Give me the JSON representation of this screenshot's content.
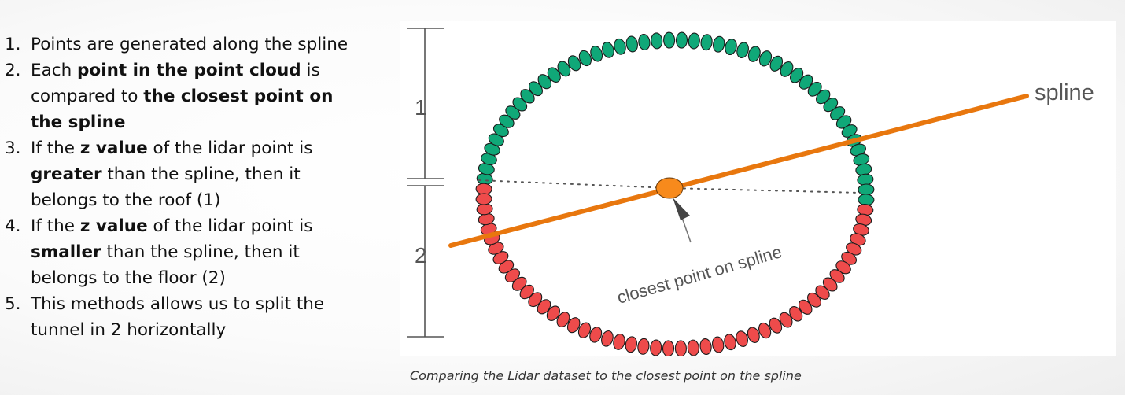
{
  "steps": [
    {
      "num": "1.",
      "parts": [
        {
          "t": "Points are generated along the spline"
        }
      ]
    },
    {
      "num": "2.",
      "parts": [
        {
          "t": "Each "
        },
        {
          "t": "point in the point cloud",
          "b": true
        },
        {
          "t": " is compared to "
        },
        {
          "t": "the closest point on the spline",
          "b": true
        }
      ]
    },
    {
      "num": "3.",
      "parts": [
        {
          "t": "If the "
        },
        {
          "t": "z value",
          "b": true
        },
        {
          "t": " of the lidar point is "
        },
        {
          "t": "greater",
          "b": true
        },
        {
          "t": " than the spline, then it belongs to the roof (1)"
        }
      ]
    },
    {
      "num": "4.",
      "parts": [
        {
          "t": "If the "
        },
        {
          "t": "z value",
          "b": true
        },
        {
          "t": " of the lidar point is "
        },
        {
          "t": "smaller",
          "b": true
        },
        {
          "t": " than the spline, then it belongs to the floor (2)"
        }
      ]
    },
    {
      "num": "5.",
      "parts": [
        {
          "t": "This methods allows us to split the tunnel in 2 horizontally"
        }
      ]
    }
  ],
  "diagram": {
    "label_1": "1",
    "label_2": "2",
    "spline_label": "spline",
    "closest_point_label": "closest point on spline",
    "colors": {
      "roof_points": "#10a878",
      "floor_points": "#ee4b4b",
      "spline": "#e8770e",
      "closest_point": "#f78a1c",
      "dimension_lines": "#555555",
      "dotted_lines": "#555555",
      "arrow": "#444444"
    }
  },
  "caption": "Comparing the Lidar dataset to the closest point on the spline"
}
